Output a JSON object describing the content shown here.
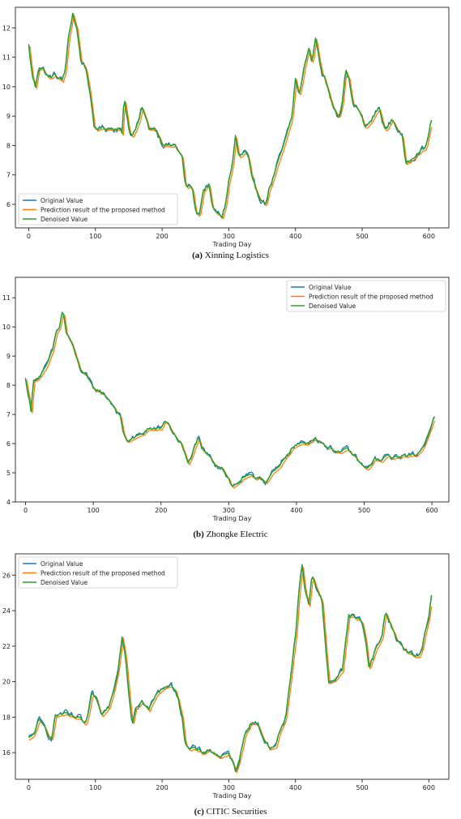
{
  "series_names": [
    "Original Value",
    "Prediction result of the proposed method",
    "Denoised Value"
  ],
  "colors": {
    "original": "#1f77b4",
    "prediction": "#ff7f0e",
    "denoised": "#2ca02c"
  },
  "chart_data": [
    {
      "type": "line",
      "caption_label": "(a)",
      "caption_text": "Xinning Logistics",
      "xlabel": "Trading Day",
      "ylabel": "",
      "xlim": [
        -20,
        630
      ],
      "ylim": [
        5.2,
        12.7
      ],
      "xticks": [
        0,
        100,
        200,
        300,
        400,
        500,
        600
      ],
      "yticks": [
        6,
        7,
        8,
        9,
        10,
        11,
        12
      ],
      "legend_position": "lower-left",
      "grid": false,
      "anchors": [
        [
          0,
          11.4
        ],
        [
          5,
          10.4
        ],
        [
          10,
          10.0
        ],
        [
          15,
          10.7
        ],
        [
          22,
          10.6
        ],
        [
          30,
          10.3
        ],
        [
          40,
          10.4
        ],
        [
          50,
          10.2
        ],
        [
          55,
          10.6
        ],
        [
          60,
          11.7
        ],
        [
          66,
          12.5
        ],
        [
          72,
          12.0
        ],
        [
          78,
          10.9
        ],
        [
          85,
          10.7
        ],
        [
          90,
          10.1
        ],
        [
          98,
          8.6
        ],
        [
          110,
          8.6
        ],
        [
          125,
          8.6
        ],
        [
          135,
          8.6
        ],
        [
          140,
          8.4
        ],
        [
          143,
          9.7
        ],
        [
          150,
          8.6
        ],
        [
          155,
          8.3
        ],
        [
          165,
          8.8
        ],
        [
          170,
          9.3
        ],
        [
          180,
          8.6
        ],
        [
          190,
          8.6
        ],
        [
          200,
          8.1
        ],
        [
          210,
          8.0
        ],
        [
          220,
          8.0
        ],
        [
          230,
          7.6
        ],
        [
          235,
          6.6
        ],
        [
          245,
          6.6
        ],
        [
          250,
          5.8
        ],
        [
          255,
          5.6
        ],
        [
          262,
          6.5
        ],
        [
          270,
          6.7
        ],
        [
          275,
          5.9
        ],
        [
          282,
          5.7
        ],
        [
          290,
          5.6
        ],
        [
          295,
          6.0
        ],
        [
          300,
          6.8
        ],
        [
          305,
          7.3
        ],
        [
          310,
          8.3
        ],
        [
          315,
          7.6
        ],
        [
          325,
          7.8
        ],
        [
          330,
          7.5
        ],
        [
          335,
          6.8
        ],
        [
          345,
          6.3
        ],
        [
          355,
          6.0
        ],
        [
          360,
          6.5
        ],
        [
          365,
          6.8
        ],
        [
          375,
          7.5
        ],
        [
          385,
          8.2
        ],
        [
          395,
          9.0
        ],
        [
          400,
          10.3
        ],
        [
          405,
          9.7
        ],
        [
          410,
          10.2
        ],
        [
          415,
          10.9
        ],
        [
          420,
          11.3
        ],
        [
          425,
          10.8
        ],
        [
          430,
          11.7
        ],
        [
          435,
          11.0
        ],
        [
          440,
          10.5
        ],
        [
          445,
          10.2
        ],
        [
          455,
          9.4
        ],
        [
          465,
          9.0
        ],
        [
          470,
          9.5
        ],
        [
          475,
          10.6
        ],
        [
          480,
          10.3
        ],
        [
          485,
          9.5
        ],
        [
          495,
          9.2
        ],
        [
          505,
          8.6
        ],
        [
          515,
          8.9
        ],
        [
          525,
          9.3
        ],
        [
          535,
          8.5
        ],
        [
          545,
          8.9
        ],
        [
          560,
          8.3
        ],
        [
          565,
          7.4
        ],
        [
          575,
          7.6
        ],
        [
          585,
          7.8
        ],
        [
          595,
          7.9
        ],
        [
          605,
          9.0
        ]
      ]
    },
    {
      "type": "line",
      "caption_label": "(b)",
      "caption_text": "Zhongke Electric",
      "xlabel": "Trading Day",
      "ylabel": "",
      "xlim": [
        -15,
        625
      ],
      "ylim": [
        4.0,
        11.7
      ],
      "xticks": [
        0,
        100,
        200,
        300,
        400,
        500,
        600
      ],
      "yticks": [
        4,
        5,
        6,
        7,
        8,
        9,
        10,
        11
      ],
      "legend_position": "top-right",
      "grid": false,
      "anchors": [
        [
          0,
          8.2
        ],
        [
          5,
          7.6
        ],
        [
          8,
          7.1
        ],
        [
          12,
          8.2
        ],
        [
          20,
          8.3
        ],
        [
          30,
          8.6
        ],
        [
          40,
          9.2
        ],
        [
          45,
          9.8
        ],
        [
          50,
          10.0
        ],
        [
          55,
          10.6
        ],
        [
          60,
          9.8
        ],
        [
          65,
          9.6
        ],
        [
          70,
          9.3
        ],
        [
          80,
          8.6
        ],
        [
          90,
          8.3
        ],
        [
          100,
          7.9
        ],
        [
          110,
          7.8
        ],
        [
          120,
          7.6
        ],
        [
          130,
          7.3
        ],
        [
          140,
          6.9
        ],
        [
          145,
          6.3
        ],
        [
          150,
          6.1
        ],
        [
          160,
          6.2
        ],
        [
          170,
          6.3
        ],
        [
          180,
          6.5
        ],
        [
          190,
          6.5
        ],
        [
          200,
          6.5
        ],
        [
          205,
          6.8
        ],
        [
          210,
          6.7
        ],
        [
          220,
          6.3
        ],
        [
          230,
          6.0
        ],
        [
          240,
          5.3
        ],
        [
          245,
          5.6
        ],
        [
          250,
          5.9
        ],
        [
          255,
          6.2
        ],
        [
          260,
          5.8
        ],
        [
          270,
          5.6
        ],
        [
          280,
          5.3
        ],
        [
          290,
          5.2
        ],
        [
          300,
          4.8
        ],
        [
          305,
          4.5
        ],
        [
          310,
          4.6
        ],
        [
          320,
          4.8
        ],
        [
          330,
          4.9
        ],
        [
          340,
          4.8
        ],
        [
          345,
          4.9
        ],
        [
          355,
          4.7
        ],
        [
          365,
          5.0
        ],
        [
          375,
          5.2
        ],
        [
          385,
          5.6
        ],
        [
          395,
          5.9
        ],
        [
          405,
          6.0
        ],
        [
          415,
          6.0
        ],
        [
          425,
          6.2
        ],
        [
          435,
          6.1
        ],
        [
          445,
          5.9
        ],
        [
          455,
          5.8
        ],
        [
          465,
          5.7
        ],
        [
          475,
          5.8
        ],
        [
          485,
          5.6
        ],
        [
          495,
          5.3
        ],
        [
          505,
          5.1
        ],
        [
          515,
          5.5
        ],
        [
          525,
          5.4
        ],
        [
          535,
          5.6
        ],
        [
          545,
          5.5
        ],
        [
          555,
          5.6
        ],
        [
          565,
          5.6
        ],
        [
          575,
          5.6
        ],
        [
          585,
          5.8
        ],
        [
          595,
          6.4
        ],
        [
          605,
          7.0
        ]
      ]
    },
    {
      "type": "line",
      "caption_label": "(c)",
      "caption_text": "CITIC Securities",
      "xlabel": "Trading Day",
      "ylabel": "",
      "xlim": [
        -20,
        630
      ],
      "ylim": [
        14.5,
        27.2
      ],
      "xticks": [
        0,
        100,
        200,
        300,
        400,
        500,
        600
      ],
      "yticks": [
        16,
        18,
        20,
        22,
        24,
        26
      ],
      "legend_position": "top-left",
      "grid": false,
      "anchors": [
        [
          0,
          16.8
        ],
        [
          5,
          16.9
        ],
        [
          10,
          17.3
        ],
        [
          15,
          17.8
        ],
        [
          20,
          17.6
        ],
        [
          25,
          17.4
        ],
        [
          30,
          17.0
        ],
        [
          35,
          16.9
        ],
        [
          40,
          18.1
        ],
        [
          50,
          18.2
        ],
        [
          60,
          18.1
        ],
        [
          70,
          18.0
        ],
        [
          80,
          17.8
        ],
        [
          85,
          17.6
        ],
        [
          90,
          18.3
        ],
        [
          95,
          19.3
        ],
        [
          100,
          19.1
        ],
        [
          105,
          18.5
        ],
        [
          110,
          18.1
        ],
        [
          120,
          18.6
        ],
        [
          125,
          19.2
        ],
        [
          135,
          21.0
        ],
        [
          140,
          22.6
        ],
        [
          145,
          21.5
        ],
        [
          150,
          19.5
        ],
        [
          155,
          17.6
        ],
        [
          160,
          18.6
        ],
        [
          170,
          18.9
        ],
        [
          180,
          18.4
        ],
        [
          190,
          19.2
        ],
        [
          200,
          19.6
        ],
        [
          205,
          19.8
        ],
        [
          210,
          19.8
        ],
        [
          220,
          19.6
        ],
        [
          225,
          18.9
        ],
        [
          230,
          18.1
        ],
        [
          235,
          16.5
        ],
        [
          240,
          16.2
        ],
        [
          250,
          16.2
        ],
        [
          260,
          16.0
        ],
        [
          270,
          16.2
        ],
        [
          280,
          15.9
        ],
        [
          290,
          15.8
        ],
        [
          300,
          15.9
        ],
        [
          305,
          15.5
        ],
        [
          310,
          15.0
        ],
        [
          315,
          15.6
        ],
        [
          320,
          16.3
        ],
        [
          325,
          17.2
        ],
        [
          335,
          17.8
        ],
        [
          345,
          17.5
        ],
        [
          350,
          17.0
        ],
        [
          360,
          16.3
        ],
        [
          370,
          16.3
        ],
        [
          375,
          17.1
        ],
        [
          385,
          18.0
        ],
        [
          390,
          19.5
        ],
        [
          395,
          21.0
        ],
        [
          400,
          22.5
        ],
        [
          405,
          25.0
        ],
        [
          410,
          26.5
        ],
        [
          415,
          25.0
        ],
        [
          420,
          24.3
        ],
        [
          425,
          26.0
        ],
        [
          430,
          25.5
        ],
        [
          440,
          24.5
        ],
        [
          445,
          22.0
        ],
        [
          450,
          20.0
        ],
        [
          460,
          20.2
        ],
        [
          470,
          20.6
        ],
        [
          480,
          23.8
        ],
        [
          490,
          23.6
        ],
        [
          500,
          23.4
        ],
        [
          505,
          22.5
        ],
        [
          510,
          20.8
        ],
        [
          520,
          21.8
        ],
        [
          530,
          22.6
        ],
        [
          535,
          24.0
        ],
        [
          540,
          23.5
        ],
        [
          545,
          23.0
        ],
        [
          550,
          22.6
        ],
        [
          555,
          22.2
        ],
        [
          565,
          21.8
        ],
        [
          575,
          21.5
        ],
        [
          585,
          21.4
        ],
        [
          590,
          22.0
        ],
        [
          600,
          23.8
        ],
        [
          605,
          25.2
        ]
      ]
    }
  ]
}
